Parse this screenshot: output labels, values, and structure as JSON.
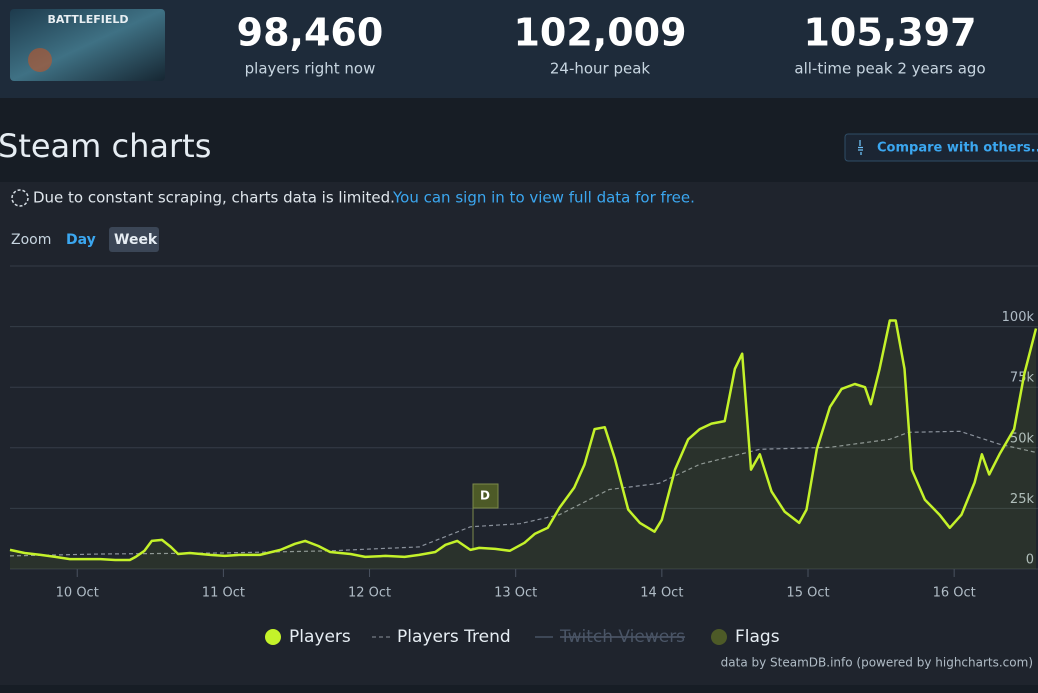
{
  "header": {
    "logo": "BATTLEFIELD",
    "stats": [
      {
        "value": "98,460",
        "label": "players right now"
      },
      {
        "value": "102,009",
        "label": "24-hour peak"
      },
      {
        "value": "105,397",
        "label": "all-time peak 2 years ago"
      }
    ]
  },
  "section_title": "Steam charts",
  "compare_button": "Compare with others...",
  "notice": {
    "text": "Due to constant scraping, charts data is limited.",
    "link": "You can sign in to view full data for free."
  },
  "zoom": {
    "label": "Zoom",
    "options": [
      "Day",
      "Week"
    ]
  },
  "chart_data": {
    "type": "line",
    "xlim": [
      9.54,
      16.56
    ],
    "xticks": [
      {
        "value": 10,
        "label": "10 Oct"
      },
      {
        "value": 11,
        "label": "11 Oct"
      },
      {
        "value": 12,
        "label": "12 Oct"
      },
      {
        "value": 13,
        "label": "13 Oct"
      },
      {
        "value": 14,
        "label": "14 Oct"
      },
      {
        "value": 15,
        "label": "15 Oct"
      },
      {
        "value": 16,
        "label": "16 Oct"
      }
    ],
    "ylim": [
      0,
      125000
    ],
    "yticks": [
      0,
      {
        "value": 25000,
        "label": "25k"
      },
      {
        "value": 50000,
        "label": "50k"
      },
      {
        "value": 75000,
        "label": "75k"
      },
      {
        "value": 100000,
        "label": "100k"
      }
    ],
    "grid": true,
    "series": [
      {
        "name": "Players",
        "color": "#c4f22a",
        "area": true,
        "x": [
          9.54,
          9.64,
          9.75,
          9.85,
          9.95,
          10.05,
          10.16,
          10.26,
          10.36,
          10.4,
          10.46,
          10.51,
          10.58,
          10.64,
          10.69,
          10.77,
          10.91,
          11.01,
          11.11,
          11.25,
          11.39,
          11.49,
          11.56,
          11.65,
          11.73,
          11.87,
          11.97,
          12.11,
          12.24,
          12.34,
          12.45,
          12.52,
          12.6,
          12.69,
          12.75,
          12.86,
          12.96,
          13.06,
          13.13,
          13.22,
          13.3,
          13.4,
          13.47,
          13.54,
          13.61,
          13.68,
          13.77,
          13.85,
          13.95,
          14.0,
          14.09,
          14.18,
          14.26,
          14.34,
          14.43,
          14.5,
          14.55,
          14.61,
          14.67,
          14.75,
          14.84,
          14.94,
          14.99,
          15.06,
          15.15,
          15.23,
          15.32,
          15.39,
          15.43,
          15.49,
          15.56,
          15.6,
          15.66,
          15.71,
          15.8,
          15.9,
          15.97,
          16.05,
          16.14,
          16.19,
          16.24,
          16.31,
          16.41,
          16.48,
          16.56
        ],
        "values": [
          7900,
          6600,
          5800,
          5000,
          4100,
          4100,
          4100,
          3700,
          3700,
          5000,
          7500,
          11600,
          12000,
          9100,
          6200,
          6600,
          5800,
          5400,
          5800,
          5800,
          7900,
          10400,
          11600,
          9500,
          7000,
          6200,
          5000,
          5400,
          5000,
          5800,
          7000,
          10000,
          11600,
          7900,
          8700,
          8300,
          7500,
          10800,
          14500,
          17000,
          25300,
          33600,
          43000,
          57700,
          58500,
          45200,
          24500,
          19000,
          15400,
          20300,
          41000,
          53500,
          57700,
          60000,
          61000,
          82600,
          88800,
          41000,
          47300,
          32000,
          23700,
          19000,
          24500,
          49400,
          66800,
          74300,
          76300,
          75000,
          68000,
          82600,
          102500,
          102500,
          82600,
          41000,
          28600,
          22400,
          17000,
          22400,
          35700,
          47300,
          39000,
          47300,
          57700,
          80500,
          99200
        ]
      },
      {
        "name": "Players Trend",
        "color": "#8b929c",
        "dashed": true,
        "x": [
          9.54,
          10.16,
          10.98,
          11.73,
          12.34,
          12.69,
          13.03,
          13.3,
          13.64,
          13.98,
          14.26,
          14.67,
          15.15,
          15.56,
          15.69,
          16.04,
          16.31,
          16.56
        ],
        "values": [
          5400,
          6200,
          6600,
          7500,
          9100,
          17400,
          18700,
          22400,
          32800,
          35300,
          43200,
          49400,
          50200,
          53500,
          56400,
          56800,
          51500,
          48100
        ]
      },
      {
        "name": "Twitch Viewers",
        "color": "#3d4756",
        "visible": false,
        "x": [],
        "values": []
      }
    ],
    "flags": {
      "name": "Flags",
      "color": "#4d5a27",
      "items": [
        {
          "x": 12.79,
          "title": "D"
        }
      ]
    },
    "credit": "data by SteamDB.info (powered by highcharts.com)"
  }
}
